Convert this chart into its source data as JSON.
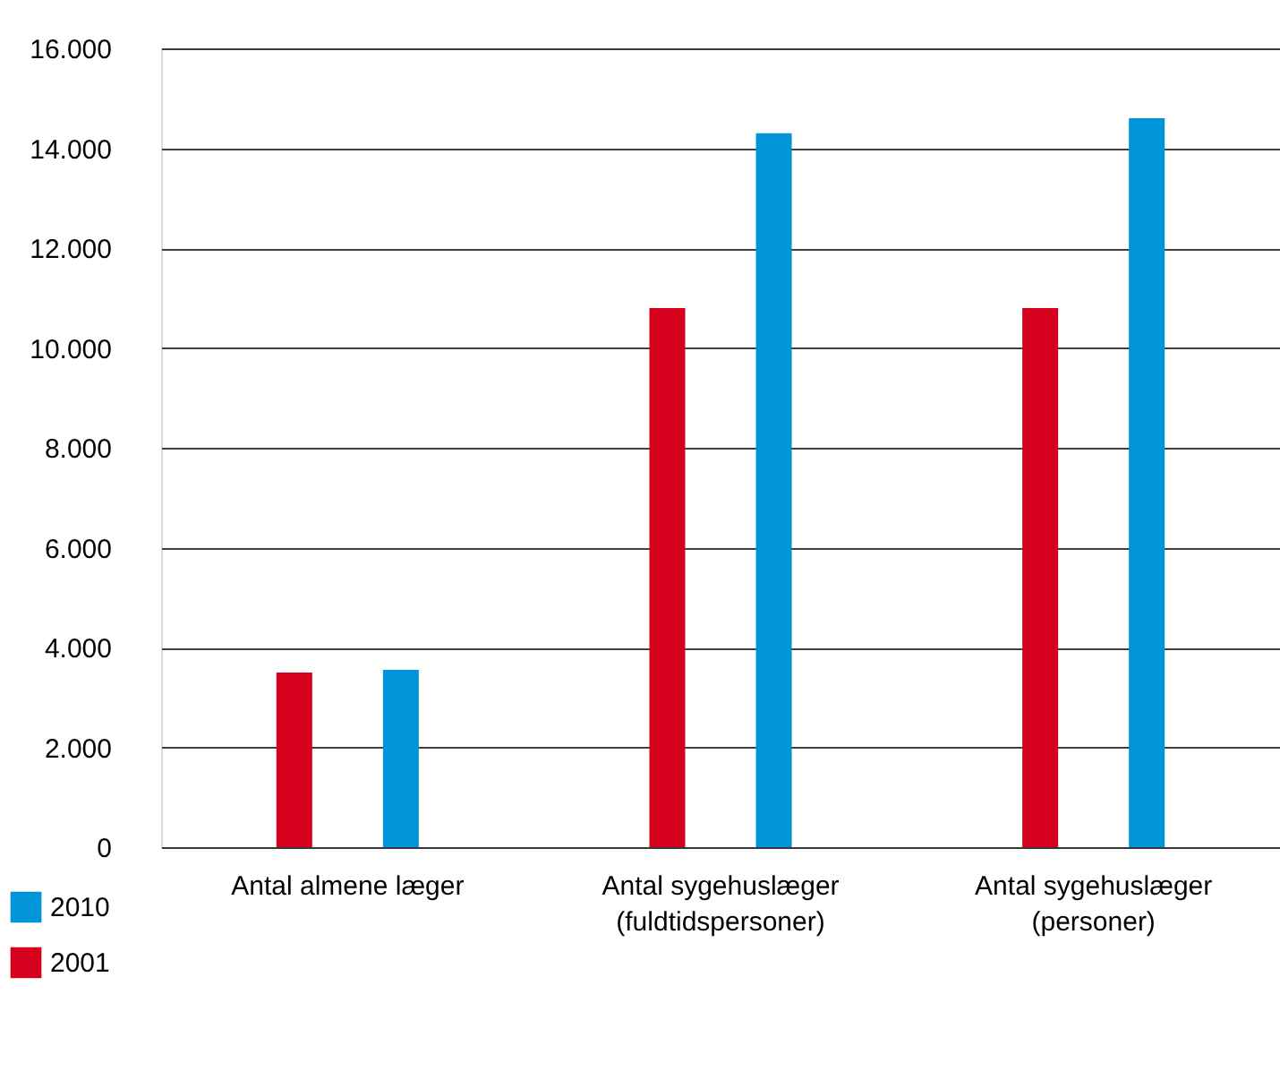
{
  "chart_data": {
    "type": "bar",
    "categories": [
      "Antal almene læger",
      "Antal sygehuslæger\n(fuldtidspersoner)",
      "Antal sygehuslæger\n(personer)"
    ],
    "series": [
      {
        "name": "2001",
        "color": "#d5001c",
        "values": [
          3500,
          10800,
          10800
        ]
      },
      {
        "name": "2010",
        "color": "#0095d9",
        "values": [
          3550,
          14300,
          14600
        ]
      }
    ],
    "ylim": [
      0,
      16000
    ],
    "yticks": [
      {
        "value": 0,
        "label": "0"
      },
      {
        "value": 2000,
        "label": "2.000"
      },
      {
        "value": 4000,
        "label": "4.000"
      },
      {
        "value": 6000,
        "label": "6.000"
      },
      {
        "value": 8000,
        "label": "8.000"
      },
      {
        "value": 10000,
        "label": "10.000"
      },
      {
        "value": 12000,
        "label": "12.000"
      },
      {
        "value": 14000,
        "label": "14.000"
      },
      {
        "value": 16000,
        "label": "16.000"
      }
    ],
    "grid": "y",
    "legend": "bottom left"
  }
}
